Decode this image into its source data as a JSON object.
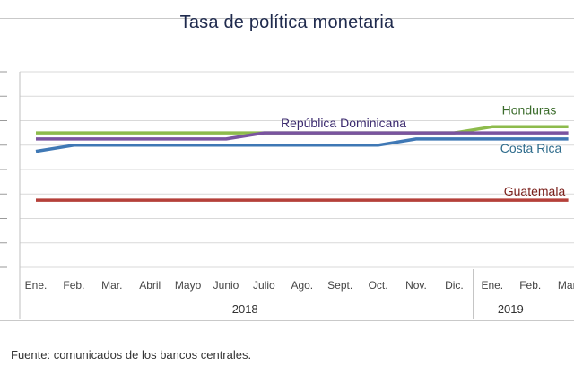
{
  "chart_data": {
    "type": "line",
    "title": "Tasa de política monetaria",
    "months": [
      "Ene.",
      "Feb.",
      "Mar.",
      "Abril",
      "Mayo",
      "Junio",
      "Julio",
      "Ago.",
      "Sept.",
      "Oct.",
      "Nov.",
      "Dic.",
      "Ene.",
      "Feb.",
      "Mar."
    ],
    "years": [
      {
        "label": "2018",
        "months": 12
      },
      {
        "label": "2019",
        "months": 3
      }
    ],
    "ylim": [
      0,
      8
    ],
    "grid": true,
    "series": [
      {
        "name": "Honduras",
        "color": "#8dbb4c",
        "values": [
          5.5,
          5.5,
          5.5,
          5.5,
          5.5,
          5.5,
          5.5,
          5.5,
          5.5,
          5.5,
          5.5,
          5.5,
          5.75,
          5.75,
          5.75
        ]
      },
      {
        "name": "República Dominicana",
        "color": "#7a54a0",
        "values": [
          5.25,
          5.25,
          5.25,
          5.25,
          5.25,
          5.25,
          5.5,
          5.5,
          5.5,
          5.5,
          5.5,
          5.5,
          5.5,
          5.5,
          5.5
        ]
      },
      {
        "name": "Costa Rica",
        "color": "#3f78b5",
        "values": [
          4.75,
          5.0,
          5.0,
          5.0,
          5.0,
          5.0,
          5.0,
          5.0,
          5.0,
          5.0,
          5.25,
          5.25,
          5.25,
          5.25,
          5.25
        ]
      },
      {
        "name": "Guatemala",
        "color": "#b5403a",
        "values": [
          2.75,
          2.75,
          2.75,
          2.75,
          2.75,
          2.75,
          2.75,
          2.75,
          2.75,
          2.75,
          2.75,
          2.75,
          2.75,
          2.75,
          2.75
        ]
      }
    ]
  },
  "source": "Fuente: comunicados de los bancos centrales."
}
